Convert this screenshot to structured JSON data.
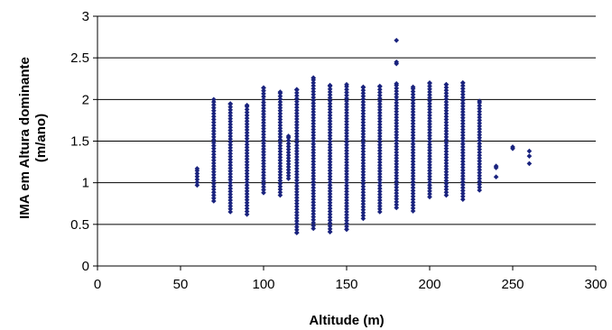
{
  "chart_data": {
    "type": "scatter",
    "title": "",
    "xlabel": "Altitude (m)",
    "ylabel_lines": [
      "IMA em Altura dominante",
      "(m/ano)"
    ],
    "xlim": [
      0,
      300
    ],
    "ylim": [
      0,
      3
    ],
    "xticks": [
      0,
      50,
      100,
      150,
      200,
      250,
      300
    ],
    "yticks": [
      0,
      0.5,
      1,
      1.5,
      2,
      2.5,
      3
    ],
    "grid": "horizontal",
    "legend": "none",
    "marker_color": "#1a237e",
    "series": [
      {
        "columns": [
          {
            "x": 60,
            "min": 0.97,
            "max": 1.17
          },
          {
            "x": 70,
            "min": 0.78,
            "max": 2.0
          },
          {
            "x": 80,
            "min": 0.65,
            "max": 1.95
          },
          {
            "x": 90,
            "min": 0.62,
            "max": 1.93
          },
          {
            "x": 100,
            "min": 0.88,
            "max": 2.14
          },
          {
            "x": 110,
            "min": 0.85,
            "max": 2.09
          },
          {
            "x": 115,
            "min": 1.05,
            "max": 1.56
          },
          {
            "x": 120,
            "min": 0.4,
            "max": 2.12
          },
          {
            "x": 130,
            "min": 0.45,
            "max": 2.26
          },
          {
            "x": 140,
            "min": 0.41,
            "max": 2.17
          },
          {
            "x": 150,
            "min": 0.44,
            "max": 2.18
          },
          {
            "x": 160,
            "min": 0.57,
            "max": 2.15
          },
          {
            "x": 170,
            "min": 0.65,
            "max": 2.16
          },
          {
            "x": 180,
            "min": 0.7,
            "max": 2.19
          },
          {
            "x": 190,
            "min": 0.66,
            "max": 2.15
          },
          {
            "x": 200,
            "min": 0.83,
            "max": 2.2
          },
          {
            "x": 210,
            "min": 0.85,
            "max": 2.18
          },
          {
            "x": 220,
            "min": 0.8,
            "max": 2.2
          },
          {
            "x": 230,
            "min": 0.91,
            "max": 1.98
          }
        ],
        "points": [
          {
            "x": 180,
            "y": 2.71
          },
          {
            "x": 180,
            "y": 2.45
          },
          {
            "x": 180,
            "y": 2.43
          },
          {
            "x": 130,
            "y": 2.26
          },
          {
            "x": 120,
            "y": 0.4
          },
          {
            "x": 140,
            "y": 0.41
          },
          {
            "x": 150,
            "y": 0.44
          },
          {
            "x": 240,
            "y": 1.2
          },
          {
            "x": 240,
            "y": 1.18
          },
          {
            "x": 240,
            "y": 1.07
          },
          {
            "x": 250,
            "y": 1.43
          },
          {
            "x": 250,
            "y": 1.41
          },
          {
            "x": 260,
            "y": 1.38
          },
          {
            "x": 260,
            "y": 1.32
          },
          {
            "x": 260,
            "y": 1.23
          }
        ]
      }
    ]
  }
}
